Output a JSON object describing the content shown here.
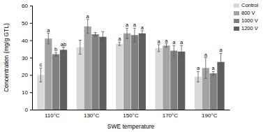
{
  "chart_data": {
    "type": "bar",
    "x_label": "SWE temperature",
    "y_label": "Concentration (mg/g GTL)",
    "categories": [
      "110°C",
      "130°C",
      "150°C",
      "170°C",
      "190°C"
    ],
    "series": [
      {
        "name": "Control",
        "color": "#d9d9d9",
        "values": [
          20,
          36,
          38,
          35.5,
          19
        ],
        "errors": [
          4,
          4,
          1,
          2,
          3
        ],
        "letters": [
          "c",
          null,
          "a",
          "a",
          "a"
        ]
      },
      {
        "name": "800 V",
        "color": "#a3a3a3",
        "values": [
          41,
          48,
          44,
          37,
          24
        ],
        "errors": [
          3,
          4,
          3,
          1,
          6
        ],
        "letters": [
          "a",
          "a",
          "a",
          "a",
          "a"
        ]
      },
      {
        "name": "1000 V",
        "color": "#808080",
        "values": [
          32,
          43.5,
          43,
          34,
          21
        ],
        "errors": [
          1,
          1,
          4,
          3,
          1
        ],
        "letters": [
          "b",
          null,
          "a",
          "a",
          "a"
        ]
      },
      {
        "name": "1200 V",
        "color": "#5f5f5f",
        "values": [
          34.5,
          42,
          44,
          33.5,
          27.5
        ],
        "errors": [
          1.5,
          3,
          1.5,
          3.5,
          5
        ],
        "letters": [
          "ab",
          null,
          "a",
          "a",
          "a"
        ]
      }
    ],
    "ylim": [
      0,
      60
    ],
    "yticks": [
      0,
      10,
      20,
      30,
      40,
      50,
      60
    ],
    "legend": "right"
  }
}
